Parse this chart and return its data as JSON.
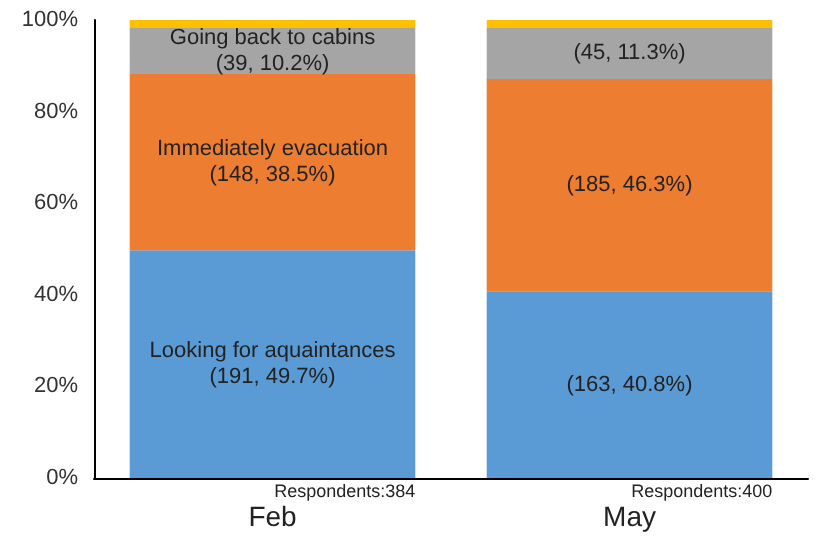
{
  "chart_data": {
    "type": "bar",
    "stacked": true,
    "categories": [
      "Feb",
      "May"
    ],
    "series": [
      {
        "color": "#5b9bd5",
        "values": [
          49.7,
          40.8
        ],
        "value_labels": [
          "Looking for aquaintances\n(191, 49.7%)",
          "(163, 40.8%)"
        ]
      },
      {
        "color": "#ed7d31",
        "values": [
          38.5,
          46.3
        ],
        "value_labels": [
          "Immediately evacuation\n(148, 38.5%)",
          "(185, 46.3%)"
        ]
      },
      {
        "color": "#a5a5a5",
        "values": [
          10.2,
          11.3
        ],
        "value_labels": [
          "Going back to cabins\n(39, 10.2%)",
          "(45, 11.3%)"
        ]
      },
      {
        "color": "#ffc000",
        "values": [
          1.6,
          1.6
        ]
      }
    ],
    "ylim": [
      0,
      100
    ],
    "yticks": [
      {
        "value": 0,
        "label": "0%"
      },
      {
        "value": 20,
        "label": "20%"
      },
      {
        "value": 40,
        "label": "40%"
      },
      {
        "value": 60,
        "label": "60%"
      },
      {
        "value": 80,
        "label": "80%"
      },
      {
        "value": 100,
        "label": "100%"
      }
    ],
    "grid": false,
    "annotations": [
      {
        "text": "Respondents:384",
        "x": "Feb",
        "y": 0
      },
      {
        "text": "Respondents:400",
        "x": "May",
        "y": 0
      }
    ]
  }
}
